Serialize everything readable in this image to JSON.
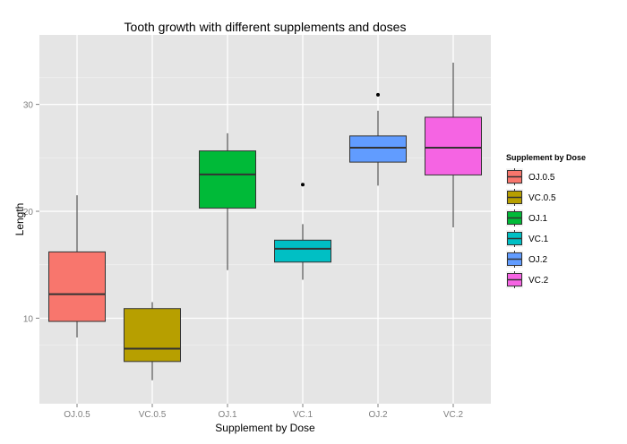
{
  "chart_data": {
    "type": "box",
    "title": "Tooth growth with different supplements and doses",
    "xlabel": "Supplement by Dose",
    "ylabel": "Length",
    "ylim": [
      2.0,
      36.5
    ],
    "yticks": [
      10,
      20,
      30
    ],
    "grid": true,
    "legend": {
      "title": "Supplement by Dose",
      "position": "right"
    },
    "categories": [
      "OJ.0.5",
      "VC.0.5",
      "OJ.1",
      "VC.1",
      "OJ.2",
      "VC.2"
    ],
    "boxes": [
      {
        "label": "OJ.0.5",
        "color": "#F8766D",
        "whisker_low": 8.2,
        "q1": 9.7,
        "median": 12.25,
        "q3": 16.2,
        "whisker_high": 21.5,
        "outliers": []
      },
      {
        "label": "VC.0.5",
        "color": "#B79F00",
        "whisker_low": 4.2,
        "q1": 5.95,
        "median": 7.15,
        "q3": 10.9,
        "whisker_high": 11.5,
        "outliers": []
      },
      {
        "label": "OJ.1",
        "color": "#00BA38",
        "whisker_low": 14.5,
        "q1": 20.3,
        "median": 23.45,
        "q3": 25.65,
        "whisker_high": 27.3,
        "outliers": []
      },
      {
        "label": "VC.1",
        "color": "#00BFC4",
        "whisker_low": 13.6,
        "q1": 15.25,
        "median": 16.5,
        "q3": 17.3,
        "whisker_high": 18.8,
        "outliers": [
          22.5
        ]
      },
      {
        "label": "OJ.2",
        "color": "#619CFF",
        "whisker_low": 22.4,
        "q1": 24.6,
        "median": 25.95,
        "q3": 27.05,
        "whisker_high": 29.4,
        "outliers": [
          30.9
        ]
      },
      {
        "label": "VC.2",
        "color": "#F564E3",
        "whisker_low": 18.5,
        "q1": 23.4,
        "median": 25.95,
        "q3": 28.8,
        "whisker_high": 33.9,
        "outliers": []
      }
    ]
  }
}
